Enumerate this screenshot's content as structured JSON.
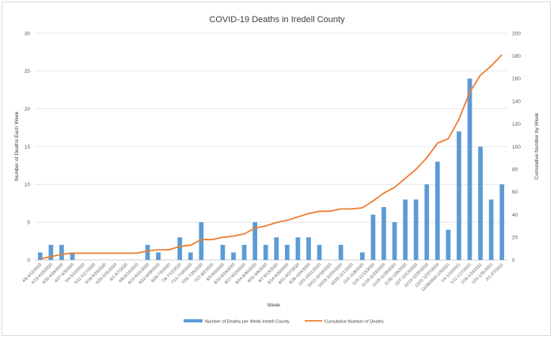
{
  "chart_data": {
    "type": "bar+line",
    "title": "COVID-19 Deaths in Iredell County",
    "xlabel": "Week",
    "ylabel_left": "Number of Deaths Each Week",
    "ylabel_right": "Cumulative Number by Week",
    "ylim_left": [
      0,
      30
    ],
    "ylim_right": [
      0,
      200
    ],
    "yticks_left": [
      0,
      5,
      10,
      15,
      20,
      25,
      30
    ],
    "yticks_right": [
      0,
      20,
      40,
      60,
      80,
      100,
      120,
      140,
      160,
      180,
      200
    ],
    "grid": "horizontal",
    "legend_position": "bottom",
    "categories": [
      "4/6-4/12/2020",
      "4/13-4/19/2020",
      "4/20-4/26/2020",
      "4/27-5/3/2020",
      "5/4-5/10/2020",
      "5/11-5/17/2020",
      "5/18-5/24/2020",
      "5/25-5/31/2020",
      "6/1-6/7/2020",
      "6/8-6/14/2020",
      "6/15-6/21/2020",
      "6/22-6/28/2020",
      "6/29-7/5/2020",
      "7/6-7/12/2020",
      "7/13-7/19/2020",
      "7/20-7/26/2020",
      "7/27-8/2/2020",
      "8/3-8/9/2020",
      "8/10-8/16/2020",
      "8/17-8/23/2020",
      "8/24-8/30/2020",
      "8/31-9/6/2020",
      "9/7-9/13/2020",
      "9/14-9/20/2020",
      "9/21-9/27/2020",
      "9/28-10/4/2020",
      "10/5-10/11/2020",
      "10/12-10/18/2020",
      "10/19-10/25/2020",
      "10/26-11/1/2020",
      "11/2-11/8/2020",
      "11/9-11/15/2020",
      "11/16-11/22/2020",
      "11/23-11/29/2020",
      "11/30-12/6/2020",
      "12/7-12/13/2020",
      "12/14-12/20/2020",
      "12/21-12/27/2020",
      "12/28/2020-1/3/2021",
      "1/4-1/10/2021",
      "1/11-1/17/2021",
      "1/18-1/24/2021",
      "1/25-1/31/2021",
      "2/1-2/7/2021"
    ],
    "xtick_labels": [
      "4/6-4/12/2020",
      "4/13-4/19/2020",
      "4/20-4/26/2020",
      "4/27-5/3/2020",
      "5/4-5/10/2020",
      "5/11-5/17/2020",
      "5/18-5/24/2020",
      "5/25-5/31/2020",
      "6/1-6/7/2020",
      "6/8-6/14/2020",
      "6/15-6/21/2020",
      "6/22-6/28/2020",
      "6/29-7/5/2020",
      "7/6-7/12/2020",
      "7/13-7/19/2020",
      "7/20-7/26/2020",
      "7/27-8/2/2020",
      "8/3-8/9/2020",
      "8/10-8/16/2020",
      "8/17-8/23/2020",
      "8/24-8/30/2020",
      "8/31-9/6/2020",
      "9/7-9/13/2020",
      "9/14-9/20/2020",
      "9/21-9/27/2020",
      "9/28-10/4/2020",
      "10/5-10/11/2020",
      "10/12-10/18/2020",
      "10/19-10/25/2020",
      "10/26-11/1/2020",
      "11/2-11/8/2020",
      "11/9-11/15/2020",
      "11/16-11/22/2020",
      "11/23-11/29/2020",
      "11/30-12/6/2020",
      "12/7-12/13/2020",
      "12/14-12/20/2020",
      "12/21-12/27/2020",
      "12/28/2020-1/3/2021",
      "1/4-1/10/2021",
      "1/11-1/17/2021",
      "1/18-1/24/2021",
      "1/25-1/31/2021",
      "2/1-2/7/2021"
    ],
    "series": [
      {
        "name": "Number of Deaths per Week Iredell County",
        "type": "bar",
        "axis": "left",
        "color": "#5b9bd5",
        "values": [
          1,
          2,
          2,
          1,
          0,
          0,
          0,
          0,
          0,
          0,
          2,
          1,
          0,
          3,
          1,
          5,
          0,
          2,
          1,
          2,
          5,
          2,
          3,
          2,
          3,
          3,
          2,
          0,
          2,
          0,
          1,
          6,
          7,
          5,
          8,
          8,
          10,
          13,
          4,
          17,
          24,
          15,
          8,
          10
        ]
      },
      {
        "name": "Cumulative Number of Deaths",
        "type": "line",
        "axis": "right",
        "color": "#ed7d31",
        "values": [
          1,
          3,
          5,
          6,
          6,
          6,
          6,
          6,
          6,
          6,
          8,
          9,
          9,
          12,
          13,
          18,
          18,
          20,
          21,
          23,
          28,
          30,
          33,
          35,
          38,
          41,
          43,
          43,
          45,
          45,
          46,
          52,
          59,
          64,
          72,
          80,
          90,
          103,
          107,
          124,
          148,
          163,
          171,
          181
        ]
      }
    ]
  }
}
